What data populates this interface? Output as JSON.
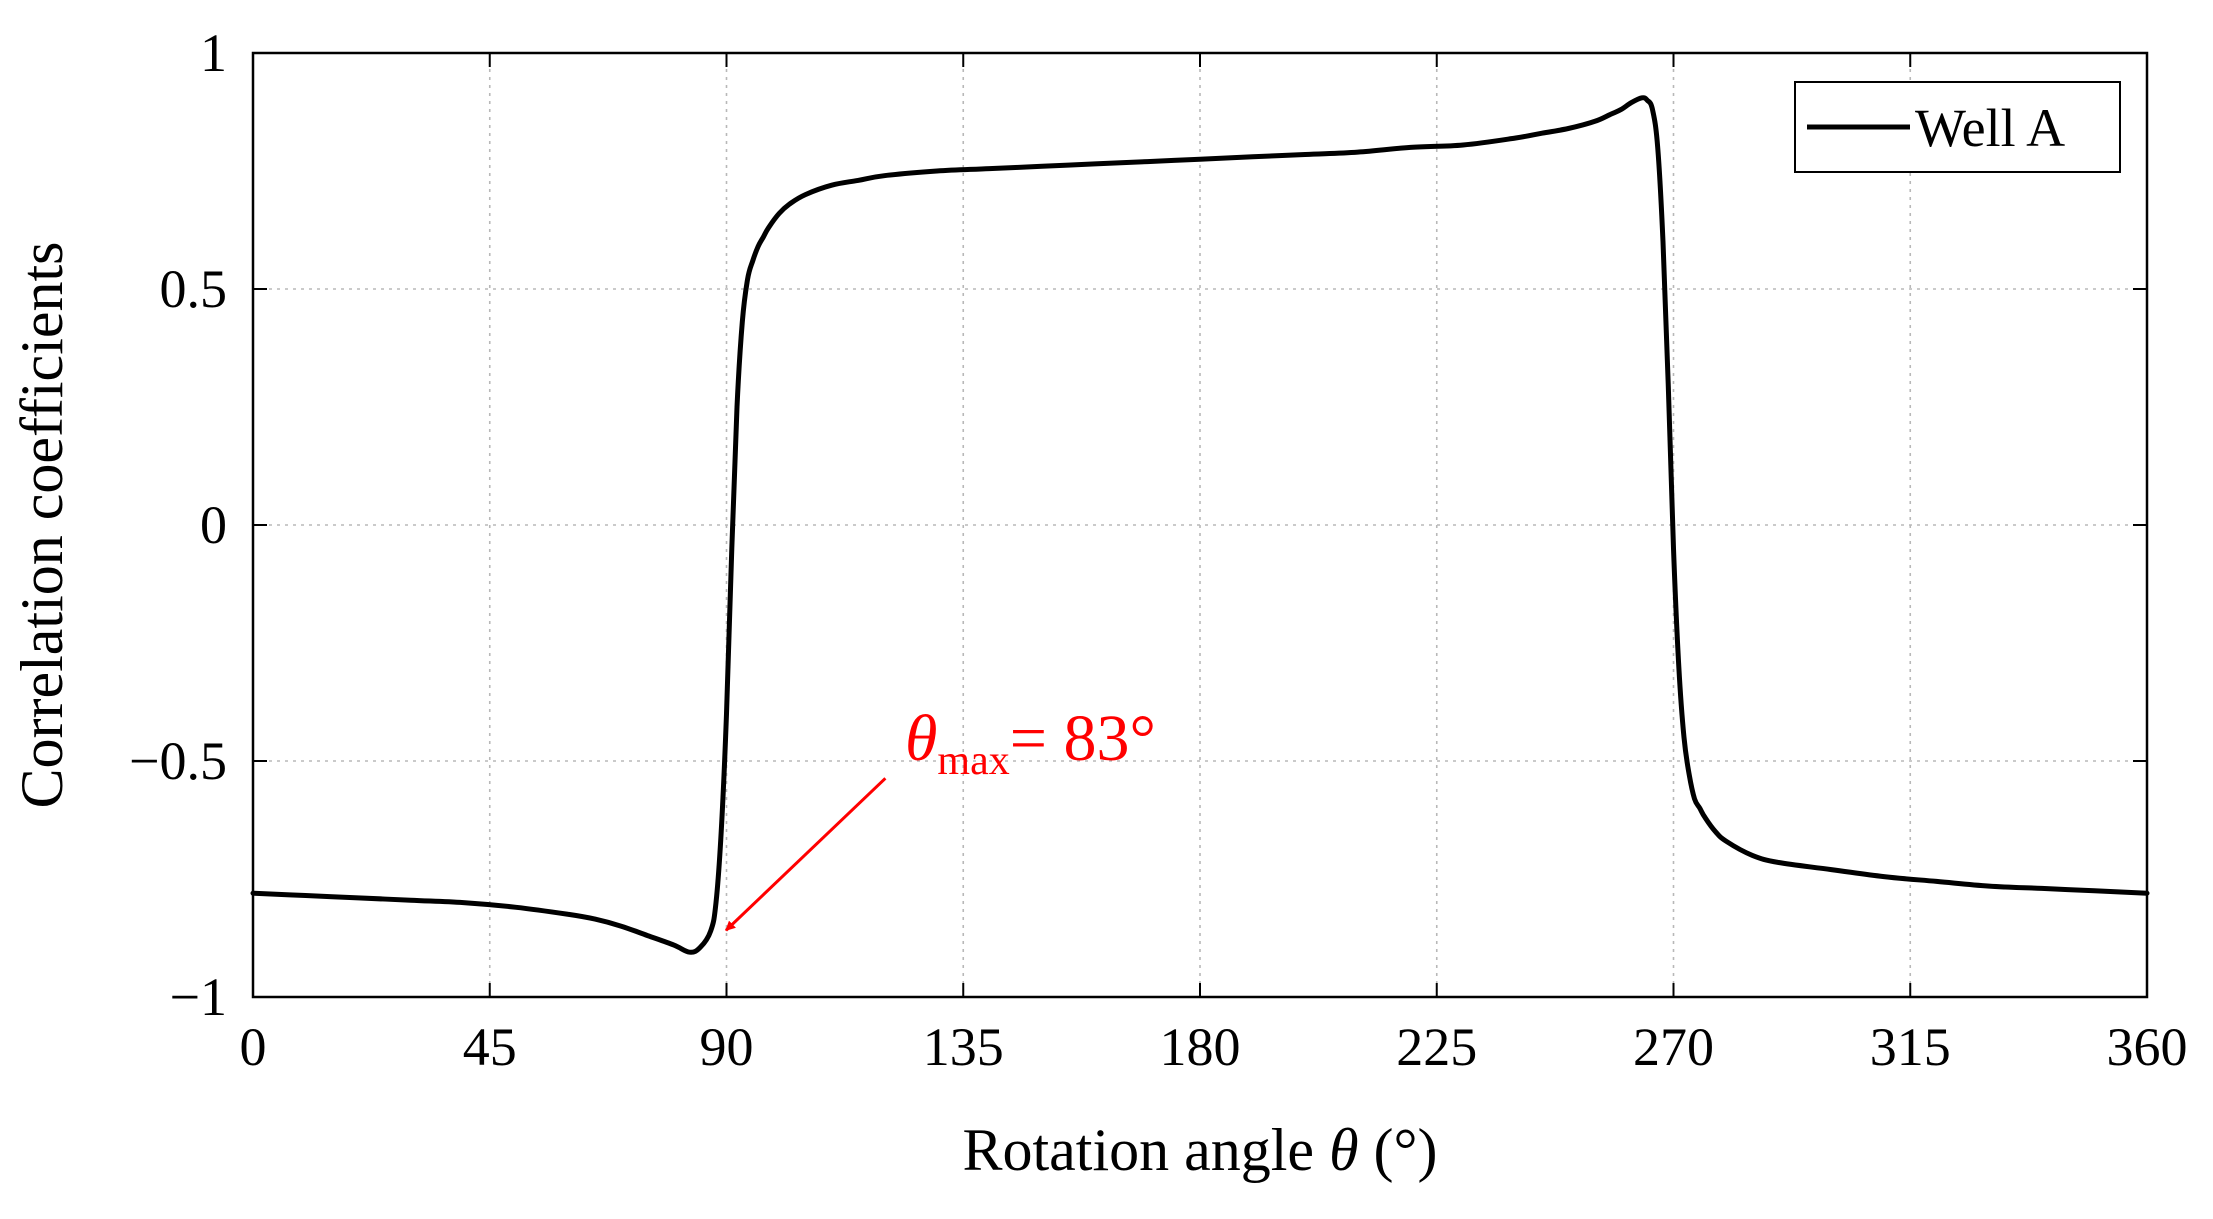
{
  "chart_data": {
    "type": "line",
    "title": "",
    "xlabel_prefix": "Rotation angle ",
    "xlabel_symbol": "θ",
    "xlabel_suffix": " (°)",
    "ylabel": "Correlation coefficients",
    "xlim": [
      0,
      360
    ],
    "ylim": [
      -1,
      1
    ],
    "grid": true,
    "legend_position": "top-right",
    "x_ticks": [
      0,
      45,
      90,
      135,
      180,
      225,
      270,
      315,
      360
    ],
    "x_tick_labels": [
      "0",
      "45",
      "90",
      "135",
      "180",
      "225",
      "270",
      "315",
      "360"
    ],
    "y_ticks": [
      -1,
      -0.5,
      0,
      0.5,
      1
    ],
    "y_tick_labels": [
      "−1",
      "−0.5",
      "0",
      "0.5",
      "1"
    ],
    "series": [
      {
        "name": "Well A",
        "color": "#000000",
        "x": [
          0,
          10,
          20,
          30,
          40,
          50,
          60,
          65,
          70,
          75,
          80,
          83,
          85,
          87,
          88,
          89,
          90,
          91,
          92,
          93,
          94,
          95,
          96,
          97,
          98,
          100,
          102,
          105,
          110,
          115,
          120,
          130,
          140,
          150,
          160,
          170,
          180,
          190,
          200,
          210,
          220,
          230,
          240,
          245,
          250,
          255,
          258,
          260,
          262,
          264,
          265,
          266,
          267,
          268,
          269,
          270,
          271,
          272,
          273,
          274,
          275,
          276,
          278,
          280,
          285,
          290,
          300,
          310,
          320,
          330,
          340,
          350,
          360
        ],
        "y": [
          -0.78,
          -0.785,
          -0.79,
          -0.795,
          -0.8,
          -0.81,
          -0.825,
          -0.835,
          -0.85,
          -0.87,
          -0.89,
          -0.905,
          -0.895,
          -0.86,
          -0.8,
          -0.65,
          -0.4,
          -0.05,
          0.25,
          0.43,
          0.52,
          0.56,
          0.59,
          0.61,
          0.63,
          0.66,
          0.68,
          0.7,
          0.72,
          0.73,
          0.74,
          0.75,
          0.755,
          0.76,
          0.765,
          0.77,
          0.775,
          0.78,
          0.785,
          0.79,
          0.8,
          0.805,
          0.82,
          0.83,
          0.84,
          0.855,
          0.87,
          0.88,
          0.895,
          0.905,
          0.9,
          0.88,
          0.8,
          0.6,
          0.3,
          -0.05,
          -0.3,
          -0.45,
          -0.53,
          -0.58,
          -0.6,
          -0.62,
          -0.65,
          -0.67,
          -0.7,
          -0.715,
          -0.73,
          -0.745,
          -0.755,
          -0.765,
          -0.77,
          -0.775,
          -0.78
        ]
      }
    ],
    "annotation": {
      "symbol": "θ",
      "subscript": "max",
      "text": "= 83°",
      "color": "#ff0000",
      "target_x": 88,
      "target_y": -0.88,
      "text_anchor_x": 124,
      "text_anchor_y": -0.49
    }
  }
}
